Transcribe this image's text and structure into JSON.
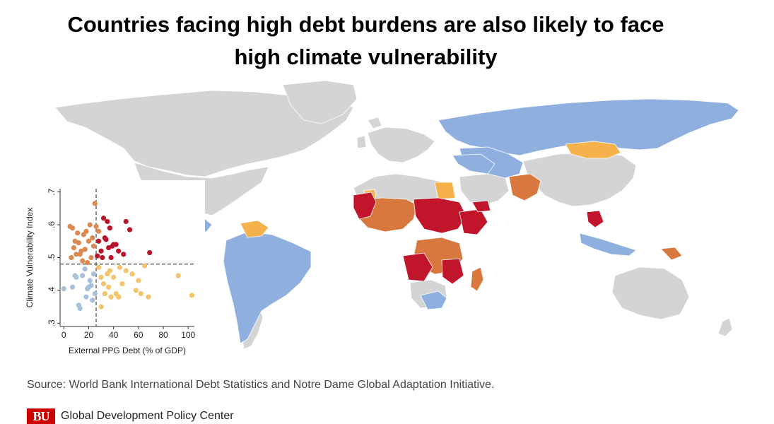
{
  "title_line1": "Countries facing high debt burdens are also likely to face",
  "title_line2": "high climate vulnerability",
  "source": "Source: World Bank International Debt Statistics and Notre Dame Global Adaptation Initiative.",
  "logo_text": "BU",
  "org_name": "Global Development Policy Center",
  "colors": {
    "no_data": "#d4d4d4",
    "low_debt_low_vuln": "#8fb0df",
    "high_debt_low_vuln": "#f5b24a",
    "low_debt_high_vuln": "#d8783e",
    "high_debt_high_vuln": "#c0152a",
    "blue_point": "#a8c0dc",
    "yellow_point": "#f3c46c",
    "orange_point": "#dc8a52",
    "red_point": "#b8152a",
    "ocean": "#ffffff"
  },
  "chart_data": {
    "type": "scatter",
    "xlabel": "External PPG Debt (% of GDP)",
    "ylabel": "Climate Vulnerability Index",
    "xlim": [
      -3,
      105
    ],
    "ylim": [
      0.29,
      0.71
    ],
    "xticks": [
      "0",
      "20",
      "40",
      "60",
      "80",
      "100"
    ],
    "xtick_values": [
      0,
      20,
      40,
      60,
      80,
      100
    ],
    "yticks": [
      ".3",
      ".4",
      ".5",
      ".6",
      ".7"
    ],
    "ytick_values": [
      0.3,
      0.4,
      0.5,
      0.6,
      0.7
    ],
    "threshold_x": 26,
    "threshold_y": 0.48,
    "grid": false,
    "series": [
      {
        "color": "blue",
        "x": [
          0,
          7,
          10,
          12,
          15,
          18,
          20,
          22,
          24,
          25,
          13,
          9,
          17,
          23,
          19,
          21
        ],
        "y": [
          0.405,
          0.41,
          0.44,
          0.355,
          0.445,
          0.38,
          0.41,
          0.415,
          0.45,
          0.39,
          0.345,
          0.445,
          0.465,
          0.37,
          0.405,
          0.43
        ]
      },
      {
        "color": "yellow",
        "x": [
          28,
          30,
          32,
          33,
          35,
          37,
          38,
          40,
          42,
          44,
          45,
          47,
          50,
          55,
          58,
          60,
          62,
          65,
          68,
          92,
          103,
          30,
          36
        ],
        "y": [
          0.47,
          0.44,
          0.42,
          0.39,
          0.45,
          0.46,
          0.38,
          0.44,
          0.39,
          0.38,
          0.47,
          0.42,
          0.46,
          0.45,
          0.4,
          0.43,
          0.39,
          0.475,
          0.38,
          0.445,
          0.385,
          0.35,
          0.41
        ]
      },
      {
        "color": "orange",
        "x": [
          5,
          7,
          8,
          10,
          12,
          14,
          16,
          18,
          20,
          22,
          24,
          25,
          6,
          11,
          15,
          19,
          23,
          26,
          28,
          13,
          9,
          17,
          21
        ],
        "y": [
          0.595,
          0.59,
          0.53,
          0.51,
          0.545,
          0.52,
          0.57,
          0.58,
          0.55,
          0.5,
          0.535,
          0.665,
          0.5,
          0.575,
          0.49,
          0.485,
          0.56,
          0.595,
          0.58,
          0.51,
          0.55,
          0.525,
          0.6
        ]
      },
      {
        "color": "red",
        "x": [
          27,
          30,
          32,
          35,
          37,
          40,
          42,
          48,
          50,
          53,
          28,
          31,
          34,
          36,
          39,
          44,
          69,
          33,
          38
        ],
        "y": [
          0.505,
          0.52,
          0.62,
          0.61,
          0.59,
          0.54,
          0.54,
          0.51,
          0.61,
          0.585,
          0.55,
          0.5,
          0.555,
          0.53,
          0.535,
          0.52,
          0.515,
          0.56,
          0.5
        ]
      }
    ]
  }
}
